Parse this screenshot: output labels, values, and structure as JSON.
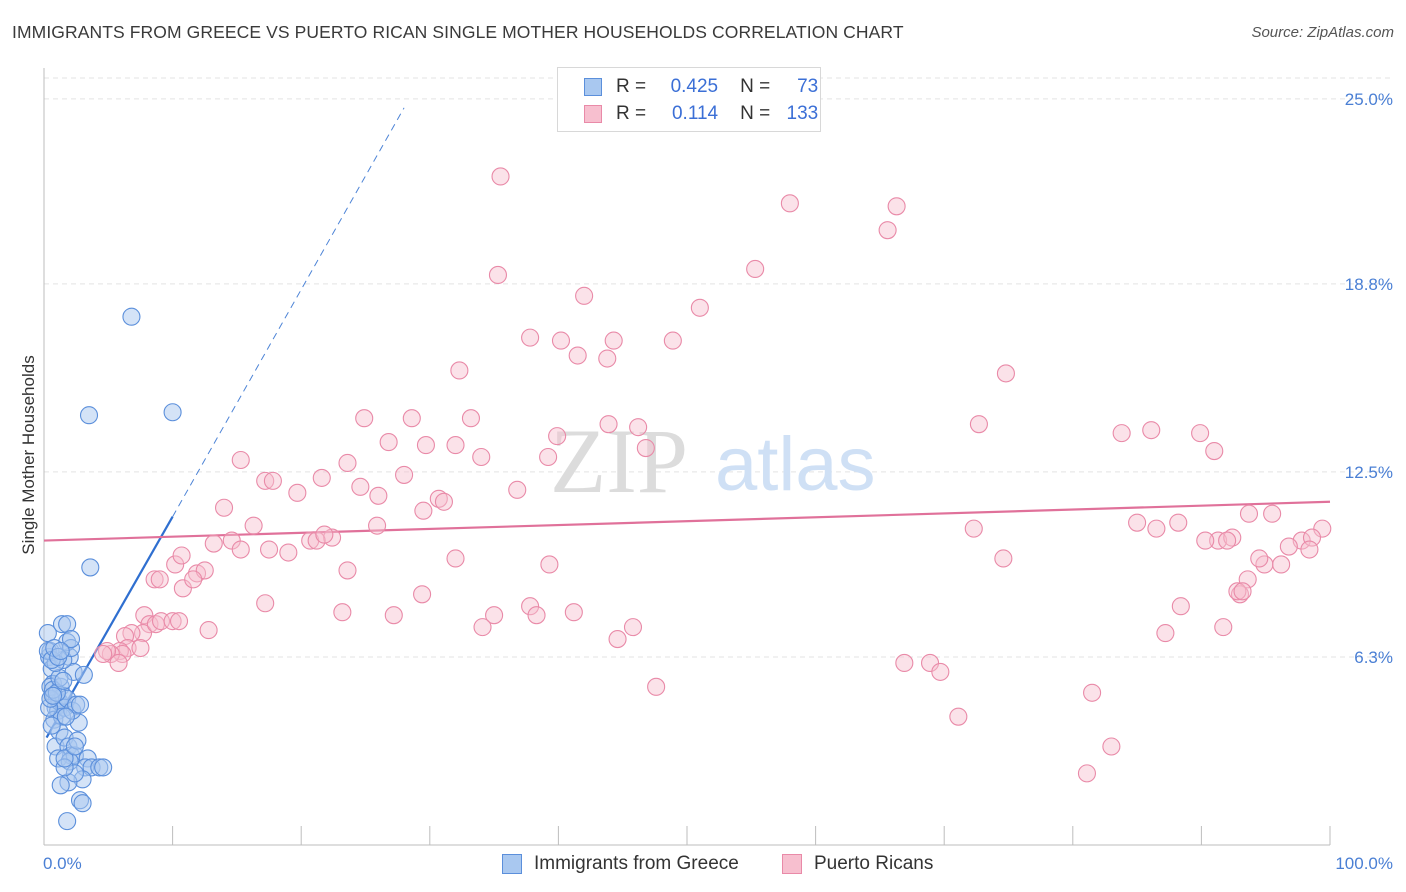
{
  "title": "IMMIGRANTS FROM GREECE VS PUERTO RICAN SINGLE MOTHER HOUSEHOLDS CORRELATION CHART",
  "source": "Source: ZipAtlas.com",
  "watermark": {
    "zip": "ZIP",
    "atlas": "atlas"
  },
  "legend": {
    "r_label": "R =",
    "n_label": "N =",
    "series": [
      {
        "r": "0.425",
        "n": "73"
      },
      {
        "r": "0.114",
        "n": "133"
      }
    ]
  },
  "bottom_legend": [
    "Immigrants from Greece",
    "Puerto Ricans"
  ],
  "colors": {
    "blue_fill": "#a9c8f0",
    "blue_stroke": "#5b8fdb",
    "blue_line": "#2f6fd0",
    "pink_fill": "#f7bfcf",
    "pink_stroke": "#e98aa8",
    "pink_line": "#e0719a",
    "grid": "#e3e3e3",
    "tick_label": "#4a7fd4"
  },
  "chart_data": {
    "type": "scatter",
    "title": "IMMIGRANTS FROM GREECE VS PUERTO RICAN SINGLE MOTHER HOUSEHOLDS CORRELATION CHART",
    "xlabel": "",
    "ylabel": "Single Mother Households",
    "xlim": [
      0,
      100
    ],
    "ylim": [
      0,
      25.9
    ],
    "x_tick_labels": [
      {
        "value": 0,
        "label": "0.0%"
      },
      {
        "value": 100,
        "label": "100.0%"
      }
    ],
    "y_ticks": [
      {
        "value": 6.3,
        "label": "6.3%"
      },
      {
        "value": 12.5,
        "label": "12.5%"
      },
      {
        "value": 18.8,
        "label": "18.8%"
      },
      {
        "value": 25.0,
        "label": "25.0%"
      }
    ],
    "series": [
      {
        "name": "Immigrants from Greece",
        "r": 0.425,
        "n": 73,
        "trend": {
          "x0": 0.2,
          "y0": 3.6,
          "x1": 10.0,
          "y1": 11.0,
          "dash_x1": 28.0,
          "dash_y1": 24.7
        },
        "points": [
          [
            0.3,
            7.1
          ],
          [
            0.4,
            6.3
          ],
          [
            0.5,
            6.5
          ],
          [
            0.6,
            5.9
          ],
          [
            0.7,
            5.4
          ],
          [
            0.8,
            5.0
          ],
          [
            0.9,
            4.6
          ],
          [
            1.0,
            4.9
          ],
          [
            1.1,
            4.5
          ],
          [
            1.2,
            4.8
          ],
          [
            0.5,
            5.3
          ],
          [
            0.8,
            4.2
          ],
          [
            1.3,
            5.3
          ],
          [
            1.5,
            5.0
          ],
          [
            1.6,
            4.6
          ],
          [
            1.8,
            4.9
          ],
          [
            1.4,
            4.3
          ],
          [
            1.2,
            3.8
          ],
          [
            0.9,
            3.3
          ],
          [
            1.6,
            3.6
          ],
          [
            1.9,
            3.3
          ],
          [
            2.1,
            3.0
          ],
          [
            2.4,
            3.0
          ],
          [
            2.6,
            3.5
          ],
          [
            2.7,
            4.1
          ],
          [
            2.2,
            4.5
          ],
          [
            2.5,
            4.7
          ],
          [
            2.8,
            4.7
          ],
          [
            1.7,
            4.3
          ],
          [
            2.0,
            6.3
          ],
          [
            2.3,
            5.8
          ],
          [
            1.5,
            6.2
          ],
          [
            1.8,
            6.8
          ],
          [
            2.1,
            6.6
          ],
          [
            1.4,
            7.4
          ],
          [
            1.8,
            7.4
          ],
          [
            2.1,
            6.9
          ],
          [
            3.1,
            5.7
          ],
          [
            3.4,
            2.9
          ],
          [
            3.2,
            2.6
          ],
          [
            3.7,
            2.6
          ],
          [
            4.3,
            2.6
          ],
          [
            4.6,
            2.6
          ],
          [
            3.0,
            2.2
          ],
          [
            2.8,
            1.5
          ],
          [
            3.0,
            1.4
          ],
          [
            1.9,
            2.1
          ],
          [
            1.3,
            2.0
          ],
          [
            1.8,
            0.8
          ],
          [
            1.1,
            2.9
          ],
          [
            2.0,
            2.8
          ],
          [
            2.4,
            2.4
          ],
          [
            1.6,
            2.6
          ],
          [
            0.6,
            4.0
          ],
          [
            0.4,
            4.6
          ],
          [
            0.5,
            4.9
          ],
          [
            0.7,
            5.2
          ],
          [
            1.0,
            5.1
          ],
          [
            1.2,
            5.6
          ],
          [
            0.9,
            6.1
          ],
          [
            0.3,
            6.5
          ],
          [
            0.6,
            6.2
          ],
          [
            0.8,
            6.6
          ],
          [
            1.1,
            6.3
          ],
          [
            1.3,
            6.5
          ],
          [
            0.7,
            5.0
          ],
          [
            1.5,
            5.5
          ],
          [
            3.6,
            9.3
          ],
          [
            3.5,
            14.4
          ],
          [
            6.8,
            17.7
          ],
          [
            10.0,
            14.5
          ],
          [
            1.6,
            2.9
          ],
          [
            2.4,
            3.3
          ]
        ]
      },
      {
        "name": "Puerto Ricans",
        "r": 0.114,
        "n": 133,
        "trend": {
          "x0": 0,
          "y0": 10.2,
          "x1": 100,
          "y1": 11.5
        },
        "points": [
          [
            35.5,
            22.4
          ],
          [
            58.0,
            21.5
          ],
          [
            66.3,
            21.4
          ],
          [
            65.6,
            20.6
          ],
          [
            55.3,
            19.3
          ],
          [
            35.3,
            19.1
          ],
          [
            42.0,
            18.4
          ],
          [
            51.0,
            18.0
          ],
          [
            37.8,
            17.0
          ],
          [
            40.2,
            16.9
          ],
          [
            44.3,
            16.9
          ],
          [
            48.9,
            16.9
          ],
          [
            41.5,
            16.4
          ],
          [
            43.8,
            16.3
          ],
          [
            32.3,
            15.9
          ],
          [
            74.8,
            15.8
          ],
          [
            24.9,
            14.3
          ],
          [
            28.6,
            14.3
          ],
          [
            33.2,
            14.3
          ],
          [
            43.9,
            14.1
          ],
          [
            46.2,
            14.0
          ],
          [
            72.7,
            14.1
          ],
          [
            83.8,
            13.8
          ],
          [
            86.1,
            13.9
          ],
          [
            89.9,
            13.8
          ],
          [
            39.9,
            13.7
          ],
          [
            26.8,
            13.5
          ],
          [
            29.7,
            13.4
          ],
          [
            32.0,
            13.4
          ],
          [
            46.8,
            13.3
          ],
          [
            91.0,
            13.2
          ],
          [
            15.3,
            12.9
          ],
          [
            23.6,
            12.8
          ],
          [
            39.2,
            13.0
          ],
          [
            34.0,
            13.0
          ],
          [
            17.2,
            12.2
          ],
          [
            17.8,
            12.2
          ],
          [
            21.6,
            12.3
          ],
          [
            28.0,
            12.4
          ],
          [
            24.6,
            12.0
          ],
          [
            26.0,
            11.7
          ],
          [
            19.7,
            11.8
          ],
          [
            36.8,
            11.9
          ],
          [
            30.7,
            11.6
          ],
          [
            31.1,
            11.5
          ],
          [
            14.0,
            11.3
          ],
          [
            29.5,
            11.2
          ],
          [
            16.3,
            10.7
          ],
          [
            25.9,
            10.7
          ],
          [
            20.7,
            10.2
          ],
          [
            22.4,
            10.3
          ],
          [
            13.2,
            10.1
          ],
          [
            14.6,
            10.2
          ],
          [
            15.3,
            9.9
          ],
          [
            17.5,
            9.9
          ],
          [
            19.0,
            9.8
          ],
          [
            21.2,
            10.2
          ],
          [
            21.8,
            10.4
          ],
          [
            72.3,
            10.6
          ],
          [
            85.0,
            10.8
          ],
          [
            86.5,
            10.6
          ],
          [
            88.2,
            10.8
          ],
          [
            93.7,
            11.1
          ],
          [
            95.5,
            11.1
          ],
          [
            99.4,
            10.6
          ],
          [
            91.3,
            10.2
          ],
          [
            90.3,
            10.2
          ],
          [
            92.4,
            10.3
          ],
          [
            97.8,
            10.2
          ],
          [
            98.6,
            10.3
          ],
          [
            96.8,
            10.0
          ],
          [
            10.2,
            9.4
          ],
          [
            10.7,
            9.7
          ],
          [
            11.9,
            9.1
          ],
          [
            12.5,
            9.2
          ],
          [
            8.6,
            8.9
          ],
          [
            9.0,
            8.9
          ],
          [
            10.8,
            8.6
          ],
          [
            11.6,
            8.9
          ],
          [
            32.0,
            9.6
          ],
          [
            23.6,
            9.2
          ],
          [
            39.3,
            9.4
          ],
          [
            74.6,
            9.6
          ],
          [
            94.9,
            9.4
          ],
          [
            96.2,
            9.4
          ],
          [
            98.4,
            9.9
          ],
          [
            93.6,
            8.9
          ],
          [
            17.2,
            8.1
          ],
          [
            23.2,
            7.8
          ],
          [
            27.2,
            7.7
          ],
          [
            35.0,
            7.7
          ],
          [
            37.8,
            8.0
          ],
          [
            38.3,
            7.7
          ],
          [
            41.2,
            7.8
          ],
          [
            45.8,
            7.3
          ],
          [
            34.1,
            7.3
          ],
          [
            29.4,
            8.4
          ],
          [
            93.0,
            8.4
          ],
          [
            88.4,
            8.0
          ],
          [
            92.8,
            8.5
          ],
          [
            12.8,
            7.2
          ],
          [
            7.8,
            7.7
          ],
          [
            8.2,
            7.4
          ],
          [
            7.7,
            7.1
          ],
          [
            8.7,
            7.4
          ],
          [
            9.1,
            7.5
          ],
          [
            10.0,
            7.5
          ],
          [
            10.5,
            7.5
          ],
          [
            6.8,
            7.1
          ],
          [
            6.3,
            7.0
          ],
          [
            6.5,
            6.6
          ],
          [
            7.5,
            6.6
          ],
          [
            5.9,
            6.5
          ],
          [
            6.1,
            6.4
          ],
          [
            5.2,
            6.4
          ],
          [
            4.9,
            6.5
          ],
          [
            4.6,
            6.4
          ],
          [
            5.8,
            6.1
          ],
          [
            44.6,
            6.9
          ],
          [
            47.6,
            5.3
          ],
          [
            66.9,
            6.1
          ],
          [
            68.9,
            6.1
          ],
          [
            69.7,
            5.8
          ],
          [
            71.1,
            4.3
          ],
          [
            81.5,
            5.1
          ],
          [
            83.0,
            3.3
          ],
          [
            81.1,
            2.4
          ],
          [
            87.2,
            7.1
          ],
          [
            91.7,
            7.3
          ],
          [
            93.2,
            8.5
          ],
          [
            92.0,
            10.2
          ],
          [
            94.5,
            9.6
          ]
        ]
      }
    ]
  }
}
